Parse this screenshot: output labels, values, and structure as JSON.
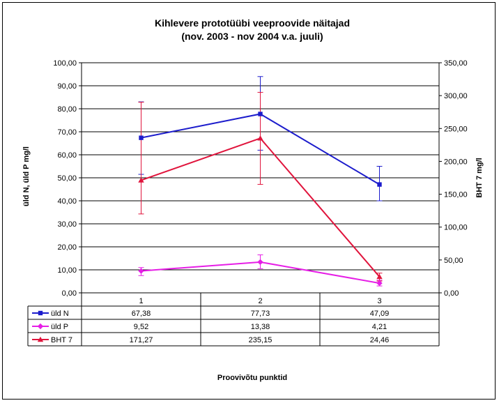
{
  "chart_data": {
    "type": "line",
    "title": "Kihlevere  prototüübi veeproovide näitajad",
    "subtitle": "(nov. 2003 - nov  2004 v.a. juuli)",
    "xlabel": "Proovivõtu punktid",
    "ylabel": "üld N, üld P  mg/l",
    "y2label": "BHT 7  mg/l",
    "categories": [
      "1",
      "2",
      "3"
    ],
    "ylim": [
      0,
      100
    ],
    "y2lim": [
      0,
      350
    ],
    "yticks": [
      "0,00",
      "10,00",
      "20,00",
      "30,00",
      "40,00",
      "50,00",
      "60,00",
      "70,00",
      "80,00",
      "90,00",
      "100,00"
    ],
    "y2ticks": [
      "0,00",
      "50,00",
      "100,00",
      "150,00",
      "200,00",
      "250,00",
      "300,00",
      "350,00"
    ],
    "grid": true,
    "legend": "data-table",
    "series": [
      {
        "name": "üld N",
        "axis": "left",
        "color": "#1c1ccc",
        "marker": "square",
        "values": [
          67.38,
          77.73,
          47.09
        ],
        "labels": [
          "67,38",
          "77,73",
          "47,09"
        ],
        "error_low": [
          51.5,
          62.0,
          40.0
        ],
        "error_high": [
          83.0,
          94.0,
          55.0
        ]
      },
      {
        "name": "üld P",
        "axis": "left",
        "color": "#e61ee6",
        "marker": "diamond",
        "values": [
          9.52,
          13.38,
          4.21
        ],
        "labels": [
          "9,52",
          "13,38",
          "4,21"
        ],
        "error_low": [
          7.5,
          10.5,
          3.0
        ],
        "error_high": [
          11.0,
          16.5,
          5.5
        ]
      },
      {
        "name": "BHT 7",
        "axis": "right",
        "color": "#e0143c",
        "marker": "triangle",
        "values": [
          171.27,
          235.15,
          24.46
        ],
        "labels": [
          "171,27",
          "235,15",
          "24,46"
        ],
        "error_low": [
          120.0,
          165.0,
          18.0
        ],
        "error_high": [
          290.0,
          305.0,
          30.0
        ]
      }
    ]
  }
}
